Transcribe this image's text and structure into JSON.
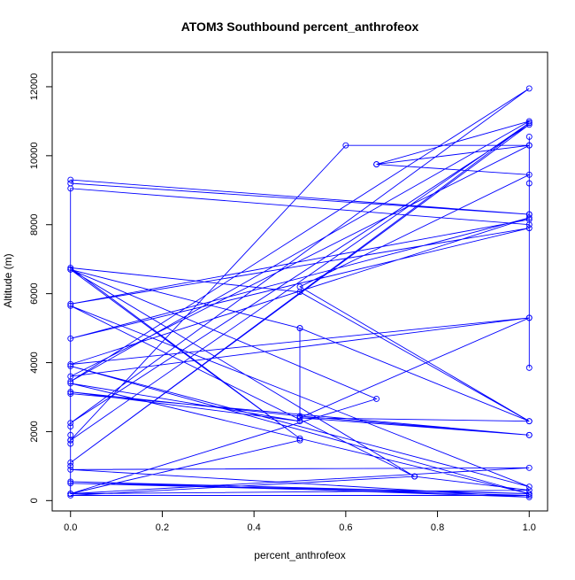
{
  "chart_data": {
    "type": "line",
    "title": "ATOM3 Southbound percent_anthrofeox",
    "xlabel": "percent_anthrofeox",
    "ylabel": "Altitude (m)",
    "xlim": [
      -0.04,
      1.04
    ],
    "ylim": [
      -300,
      13000
    ],
    "x_ticks": [
      0.0,
      0.2,
      0.4,
      0.6,
      0.8,
      1.0
    ],
    "x_tick_labels": [
      "0.0",
      "0.2",
      "0.4",
      "0.6",
      "0.8",
      "1.0"
    ],
    "y_ticks": [
      0,
      2000,
      4000,
      6000,
      8000,
      10000,
      12000
    ],
    "y_tick_labels": [
      "0",
      "2000",
      "4000",
      "6000",
      "8000",
      "10000",
      "12000"
    ],
    "grid": false,
    "legend": "none",
    "series_color": "#0000ff",
    "series": [
      {
        "points": [
          [
            0,
            9300
          ],
          [
            1,
            8300
          ],
          [
            0,
            9200
          ],
          [
            1,
            8300
          ],
          [
            1,
            8150
          ],
          [
            0,
            5700
          ],
          [
            1,
            7900
          ],
          [
            0,
            4700
          ],
          [
            1,
            8200
          ],
          [
            0,
            3950
          ],
          [
            1,
            5300
          ],
          [
            0,
            3600
          ],
          [
            1,
            10300
          ],
          [
            0.6,
            10300
          ],
          [
            0,
            1750
          ],
          [
            1,
            10950
          ],
          [
            0,
            1750
          ],
          [
            1,
            10950
          ],
          [
            0,
            1100
          ],
          [
            1,
            10900
          ],
          [
            0,
            2250
          ],
          [
            1,
            11950
          ],
          [
            0,
            3450
          ],
          [
            1,
            11000
          ],
          [
            0.667,
            9750
          ],
          [
            1,
            10300
          ],
          [
            0.667,
            9750
          ],
          [
            1,
            9450
          ],
          [
            0.5,
            6200
          ],
          [
            1,
            2300
          ],
          [
            0.5,
            6050
          ],
          [
            0,
            6750
          ],
          [
            0.5,
            1800
          ],
          [
            0,
            6700
          ],
          [
            0.75,
            700
          ],
          [
            0,
            5650
          ],
          [
            1,
            400
          ],
          [
            0,
            3900
          ],
          [
            1,
            200
          ],
          [
            0,
            3400
          ],
          [
            0.5,
            2300
          ],
          [
            0,
            3150
          ],
          [
            0.5,
            2450
          ],
          [
            1,
            1900
          ],
          [
            0,
            3100
          ],
          [
            1,
            1900
          ],
          [
            0.5,
            2400
          ],
          [
            1,
            2300
          ],
          [
            0.5,
            5000
          ],
          [
            0,
            6700
          ],
          [
            0.667,
            2950
          ],
          [
            0,
            200
          ],
          [
            0.5,
            1750
          ],
          [
            0,
            200
          ],
          [
            1,
            950
          ],
          [
            0,
            900
          ],
          [
            1,
            100
          ],
          [
            0,
            550
          ],
          [
            1,
            200
          ],
          [
            0,
            500
          ],
          [
            1,
            150
          ],
          [
            0,
            150
          ],
          [
            0.75,
            700
          ],
          [
            1,
            300
          ],
          [
            0,
            200
          ],
          [
            0,
            1000
          ],
          [
            0,
            1650
          ],
          [
            0,
            1900
          ],
          [
            0,
            2150
          ],
          [
            0,
            9050
          ],
          [
            1,
            8000
          ],
          [
            1,
            9200
          ],
          [
            1,
            10550
          ],
          [
            1,
            3850
          ],
          [
            1,
            5300
          ],
          [
            0.5,
            2400
          ],
          [
            0.5,
            5000
          ]
        ]
      }
    ]
  }
}
